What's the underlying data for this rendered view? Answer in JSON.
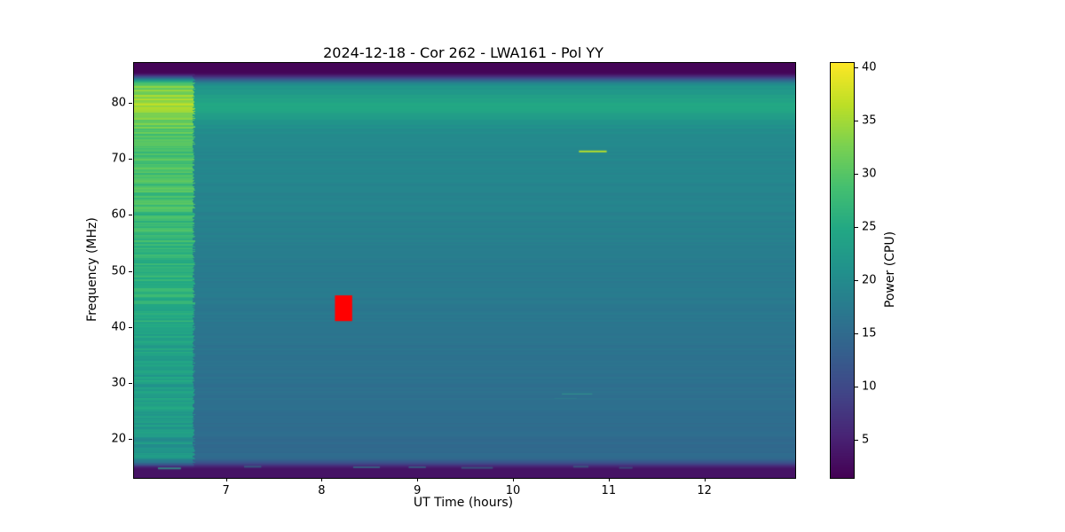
{
  "chart_data": {
    "type": "heatmap",
    "title": "2024-12-18 - Cor 262 - LWA161 - Pol YY",
    "xlabel": "UT Time (hours)",
    "ylabel": "Frequency (MHz)",
    "colorbar_label": "Power (CPU)",
    "x_range": [
      6.03,
      12.94
    ],
    "y_range": [
      13.2,
      87.3
    ],
    "x_ticks": [
      7,
      8,
      9,
      10,
      11,
      12
    ],
    "y_ticks": [
      20,
      30,
      40,
      50,
      60,
      70,
      80
    ],
    "colorbar_ticks": [
      5,
      10,
      15,
      20,
      25,
      30,
      35,
      40
    ],
    "vmin": 1.5,
    "vmax": 40.5,
    "colormap": "viridis",
    "colormap_rgb": [
      [
        68,
        1,
        84
      ],
      [
        72,
        36,
        117
      ],
      [
        65,
        68,
        135
      ],
      [
        53,
        95,
        141
      ],
      [
        42,
        120,
        142
      ],
      [
        33,
        145,
        140
      ],
      [
        34,
        168,
        132
      ],
      [
        68,
        191,
        112
      ],
      [
        122,
        209,
        81
      ],
      [
        189,
        223,
        38
      ],
      [
        253,
        231,
        37
      ]
    ],
    "model": {
      "p_low": 14.5,
      "p_high": 21.0,
      "bump_center": 79.5,
      "bump_width": 2.8,
      "bump_amp": 4.5,
      "stripe_amp": 0.5,
      "active_t_end": 6.65,
      "active_boost_low": 6.5,
      "active_boost_high": 11.0,
      "active_stripe_amp": 1.6,
      "top_fade_start": 83.2,
      "top_fade_end": 85.8,
      "top_floor": 1.8,
      "bottom_fade_start": 16.6,
      "bottom_fade_end": 14.6,
      "bottom_floor": 3.5
    },
    "features": [
      {
        "name": "event-marker-red",
        "type": "rect",
        "t": [
          8.13,
          8.31
        ],
        "f": [
          41.2,
          45.8
        ],
        "color": "#ff0000",
        "alpha": 1
      },
      {
        "name": "narrowband-emission-line",
        "type": "line",
        "t": [
          10.68,
          10.97
        ],
        "f": 71.5,
        "color": "#b5de2b",
        "width": 2,
        "alpha": 1
      },
      {
        "name": "faint-line-28mhz",
        "type": "line",
        "t": [
          10.5,
          10.82
        ],
        "f": 28.2,
        "color": "#35b28a",
        "width": 1,
        "alpha": 0.6
      },
      {
        "name": "faint-line-27mhz",
        "type": "line",
        "t": [
          10.42,
          10.66
        ],
        "f": 27.4,
        "color": "#2f8e8e",
        "width": 1,
        "alpha": 0.45
      },
      {
        "name": "bottom-dash-1",
        "type": "line",
        "t": [
          6.28,
          6.52
        ],
        "f": 14.9,
        "color": "#2fa08c",
        "width": 2,
        "alpha": 0.8
      },
      {
        "name": "bottom-dash-2",
        "type": "line",
        "t": [
          7.18,
          7.36
        ],
        "f": 15.2,
        "color": "#2c8a8e",
        "width": 2,
        "alpha": 0.5
      },
      {
        "name": "bottom-dash-3",
        "type": "line",
        "t": [
          8.32,
          8.6
        ],
        "f": 15.1,
        "color": "#2c8a8e",
        "width": 2,
        "alpha": 0.55
      },
      {
        "name": "bottom-dash-4",
        "type": "line",
        "t": [
          8.9,
          9.08
        ],
        "f": 15.1,
        "color": "#2c8a8e",
        "width": 2,
        "alpha": 0.5
      },
      {
        "name": "bottom-dash-5",
        "type": "line",
        "t": [
          9.45,
          9.78
        ],
        "f": 15.0,
        "color": "#2c8a8e",
        "width": 2,
        "alpha": 0.5
      },
      {
        "name": "bottom-dash-6",
        "type": "line",
        "t": [
          10.62,
          10.78
        ],
        "f": 15.2,
        "color": "#2c8a8e",
        "width": 2,
        "alpha": 0.45
      },
      {
        "name": "bottom-dash-7",
        "type": "line",
        "t": [
          11.1,
          11.24
        ],
        "f": 15.0,
        "color": "#2c8a8e",
        "width": 2,
        "alpha": 0.4
      }
    ]
  }
}
